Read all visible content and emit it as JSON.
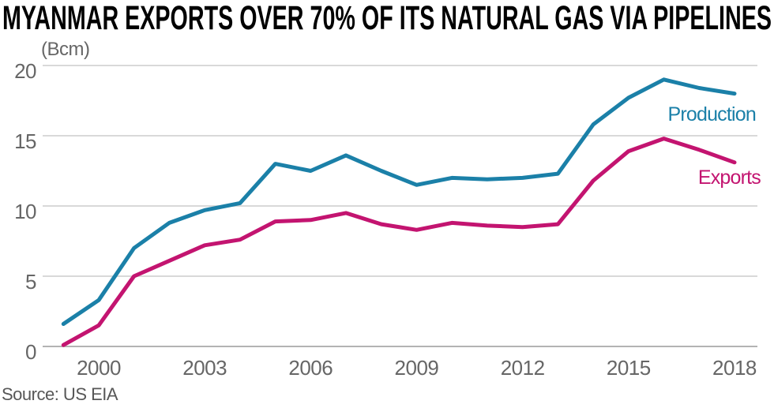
{
  "page": {
    "title": "MYANMAR EXPORTS OVER 70% OF ITS NATURAL GAS VIA PIPELINES",
    "unit_label": "(Bcm)",
    "source": "Source: US EIA"
  },
  "colors": {
    "title": "#000000",
    "axis_text": "#666666",
    "grid": "#d9d9d9",
    "zero_line": "#b3b3b3",
    "background": "#ffffff",
    "production": "#1b80a8",
    "exports": "#c31470"
  },
  "chart_data": {
    "type": "line",
    "title": "MYANMAR EXPORTS OVER 70% OF ITS NATURAL GAS VIA PIPELINES",
    "unit": "Bcm",
    "x": [
      1999,
      2000,
      2001,
      2002,
      2003,
      2004,
      2005,
      2006,
      2007,
      2008,
      2009,
      2010,
      2011,
      2012,
      2013,
      2014,
      2015,
      2016,
      2017,
      2018
    ],
    "series": [
      {
        "name": "Production",
        "color": "#1b80a8",
        "values": [
          1.6,
          3.3,
          7.0,
          8.8,
          9.7,
          10.2,
          13.0,
          12.5,
          13.6,
          12.5,
          11.5,
          12.0,
          11.9,
          12.0,
          12.3,
          15.8,
          17.7,
          19.0,
          18.4,
          18.0
        ]
      },
      {
        "name": "Exports",
        "color": "#c31470",
        "values": [
          0.1,
          1.5,
          5.0,
          6.1,
          7.2,
          7.6,
          8.9,
          9.0,
          9.5,
          8.7,
          8.3,
          8.8,
          8.6,
          8.5,
          8.7,
          11.8,
          13.9,
          14.8,
          14.0,
          13.1
        ]
      }
    ],
    "ylim": [
      0,
      20
    ],
    "yticks": [
      0,
      5,
      10,
      15,
      20
    ],
    "xticks": [
      2000,
      2003,
      2006,
      2009,
      2012,
      2015,
      2018
    ],
    "grid": true,
    "legend_position": "labels-at-line-end-right",
    "source": "Source: US EIA"
  }
}
